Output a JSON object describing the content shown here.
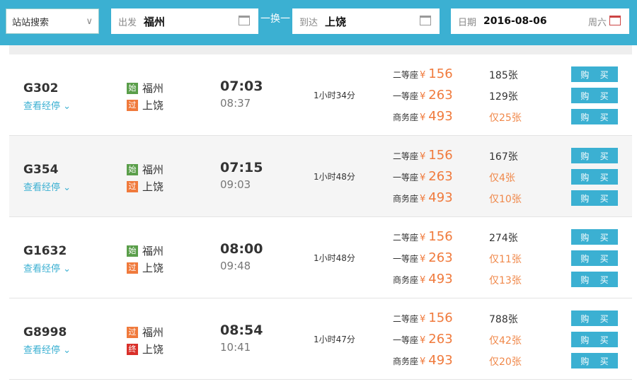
{
  "search": {
    "mode": "站站搜索",
    "from_label": "出发",
    "from": "福州",
    "swap": "一换一",
    "to_label": "到达",
    "to": "上饶",
    "date_label": "日期",
    "date": "2016-08-06",
    "weekday": "周六"
  },
  "colors": {
    "accent": "#3bb0d2",
    "price": "#f07a3c",
    "start": "#5a9e4a",
    "pass": "#f07a3c",
    "end": "#d9302a"
  },
  "buy_label": "购 买",
  "stops_label": "查看经停",
  "trains": [
    {
      "no": "G302",
      "from_tag": "始",
      "from": "福州",
      "to_tag": "过",
      "to": "上饶",
      "dep": "07:03",
      "arr": "08:37",
      "dur": "1小时34分",
      "seats": [
        {
          "name": "二等座",
          "price": "156",
          "count": "185张",
          "low": false
        },
        {
          "name": "一等座",
          "price": "263",
          "count": "129张",
          "low": false
        },
        {
          "name": "商务座",
          "price": "493",
          "count": "仅25张",
          "low": true
        }
      ]
    },
    {
      "no": "G354",
      "from_tag": "始",
      "from": "福州",
      "to_tag": "过",
      "to": "上饶",
      "dep": "07:15",
      "arr": "09:03",
      "dur": "1小时48分",
      "seats": [
        {
          "name": "二等座",
          "price": "156",
          "count": "167张",
          "low": false
        },
        {
          "name": "一等座",
          "price": "263",
          "count": "仅4张",
          "low": true
        },
        {
          "name": "商务座",
          "price": "493",
          "count": "仅10张",
          "low": true
        }
      ]
    },
    {
      "no": "G1632",
      "from_tag": "始",
      "from": "福州",
      "to_tag": "过",
      "to": "上饶",
      "dep": "08:00",
      "arr": "09:48",
      "dur": "1小时48分",
      "seats": [
        {
          "name": "二等座",
          "price": "156",
          "count": "274张",
          "low": false
        },
        {
          "name": "一等座",
          "price": "263",
          "count": "仅11张",
          "low": true
        },
        {
          "name": "商务座",
          "price": "493",
          "count": "仅13张",
          "low": true
        }
      ]
    },
    {
      "no": "G8998",
      "from_tag": "过",
      "from": "福州",
      "to_tag": "终",
      "to": "上饶",
      "dep": "08:54",
      "arr": "10:41",
      "dur": "1小时47分",
      "seats": [
        {
          "name": "二等座",
          "price": "156",
          "count": "788张",
          "low": false
        },
        {
          "name": "一等座",
          "price": "263",
          "count": "仅42张",
          "low": true
        },
        {
          "name": "商务座",
          "price": "493",
          "count": "仅20张",
          "low": true
        }
      ]
    }
  ]
}
